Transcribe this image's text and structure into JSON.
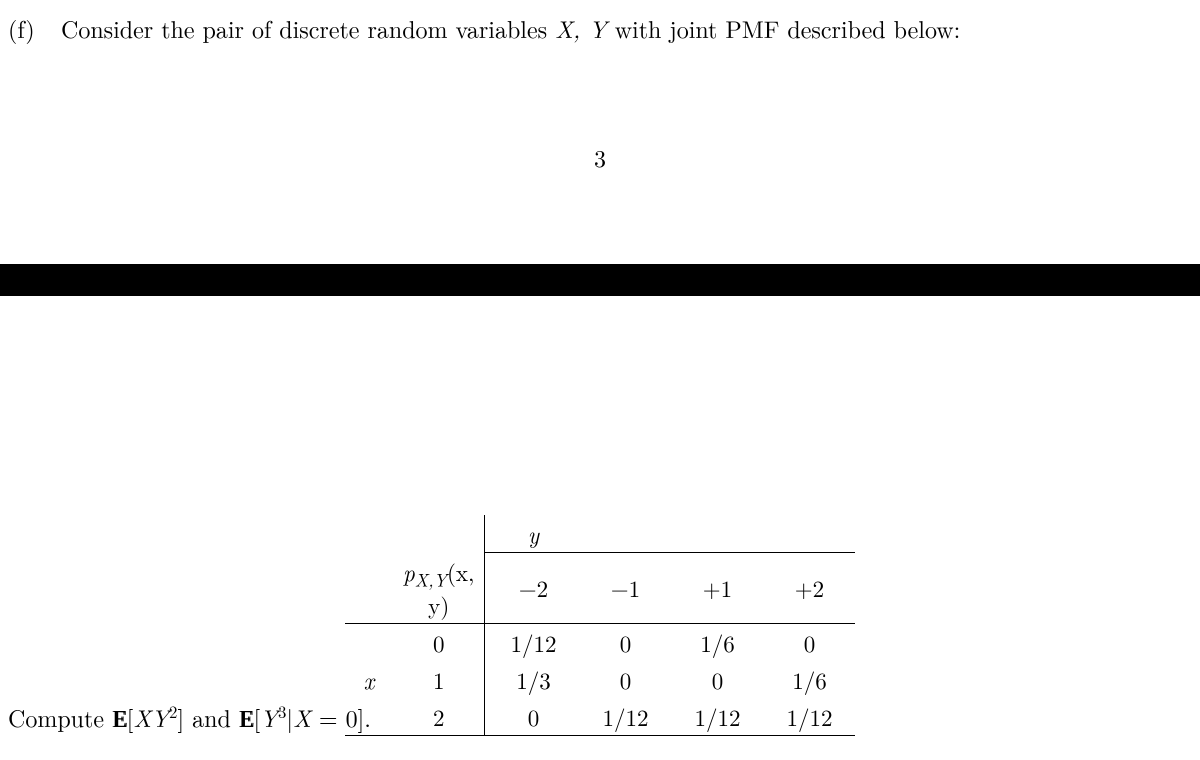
{
  "part_label": "(f)",
  "question_text_pre": "Consider the pair of discrete random variables ",
  "question_vars": "X, Y",
  "question_text_post": " with joint PMF described below:",
  "page_number": "3",
  "pmf_label": "p",
  "pmf_sub": "X,Y",
  "pmf_args": "(x, y)",
  "y_header": "y",
  "x_header": "x",
  "y_values": [
    "−2",
    "−1",
    "+1",
    "+2"
  ],
  "x_values": [
    "0",
    "1",
    "2"
  ],
  "rows": [
    [
      "1/12",
      "0",
      "1/6",
      "0"
    ],
    [
      "1/3",
      "0",
      "0",
      "1/6"
    ],
    [
      "0",
      "1/12",
      "1/12",
      "1/12"
    ]
  ],
  "compute_pre": "Compute ",
  "e1_inner_xy": "XY",
  "e1_sup": "2",
  "compute_and": " and ",
  "e2_inner_y": "Y",
  "e2_sup": "3",
  "e2_cond": "|X",
  "e2_eq": " = 0].",
  "bar_color": "#000000",
  "background": "#ffffff"
}
